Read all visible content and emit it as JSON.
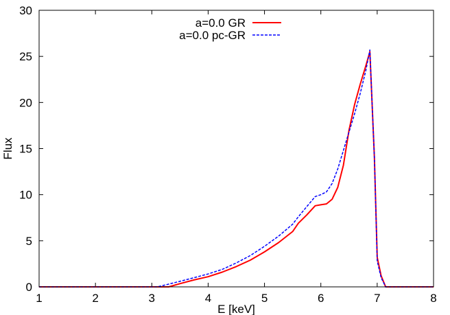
{
  "chart_data": {
    "type": "line",
    "title": "",
    "xlabel": "E [keV]",
    "ylabel": "Flux",
    "xlim": [
      1,
      8
    ],
    "ylim": [
      0,
      30
    ],
    "xticks": [
      1,
      2,
      3,
      4,
      5,
      6,
      7,
      8
    ],
    "yticks": [
      0,
      5,
      10,
      15,
      20,
      25,
      30
    ],
    "grid": false,
    "legend_position": "top-center",
    "series": [
      {
        "name": "a=0.0 GR",
        "color": "#ff0000",
        "dash": "solid",
        "points": [
          [
            1.0,
            0.0
          ],
          [
            2.0,
            0.0
          ],
          [
            3.0,
            0.0
          ],
          [
            3.3,
            0.0
          ],
          [
            3.5,
            0.35
          ],
          [
            3.75,
            0.75
          ],
          [
            4.0,
            1.1
          ],
          [
            4.25,
            1.6
          ],
          [
            4.5,
            2.2
          ],
          [
            4.75,
            2.9
          ],
          [
            5.0,
            3.8
          ],
          [
            5.25,
            4.8
          ],
          [
            5.5,
            6.0
          ],
          [
            5.6,
            6.9
          ],
          [
            5.75,
            7.8
          ],
          [
            5.9,
            8.8
          ],
          [
            6.0,
            8.9
          ],
          [
            6.1,
            9.0
          ],
          [
            6.2,
            9.5
          ],
          [
            6.3,
            10.8
          ],
          [
            6.4,
            13.2
          ],
          [
            6.5,
            17.0
          ],
          [
            6.6,
            19.8
          ],
          [
            6.7,
            22.0
          ],
          [
            6.8,
            24.0
          ],
          [
            6.87,
            25.5
          ],
          [
            6.95,
            14.0
          ],
          [
            7.0,
            3.2
          ],
          [
            7.07,
            1.2
          ],
          [
            7.15,
            0.0
          ],
          [
            8.0,
            0.0
          ]
        ]
      },
      {
        "name": "a=0.0 pc-GR",
        "color": "#0000ff",
        "dash": "dashed",
        "points": [
          [
            1.0,
            0.0
          ],
          [
            2.0,
            0.0
          ],
          [
            3.0,
            0.0
          ],
          [
            3.1,
            0.0
          ],
          [
            3.3,
            0.3
          ],
          [
            3.5,
            0.6
          ],
          [
            3.75,
            1.0
          ],
          [
            4.0,
            1.4
          ],
          [
            4.25,
            1.9
          ],
          [
            4.5,
            2.6
          ],
          [
            4.75,
            3.4
          ],
          [
            5.0,
            4.4
          ],
          [
            5.25,
            5.5
          ],
          [
            5.5,
            6.8
          ],
          [
            5.6,
            7.6
          ],
          [
            5.75,
            8.7
          ],
          [
            5.9,
            9.8
          ],
          [
            6.0,
            10.0
          ],
          [
            6.1,
            10.3
          ],
          [
            6.2,
            11.2
          ],
          [
            6.3,
            12.8
          ],
          [
            6.4,
            14.8
          ],
          [
            6.5,
            16.8
          ],
          [
            6.6,
            18.8
          ],
          [
            6.7,
            21.0
          ],
          [
            6.8,
            23.5
          ],
          [
            6.87,
            25.7
          ],
          [
            6.95,
            14.0
          ],
          [
            7.0,
            2.8
          ],
          [
            7.07,
            1.0
          ],
          [
            7.15,
            0.0
          ],
          [
            8.0,
            0.0
          ]
        ]
      }
    ]
  }
}
